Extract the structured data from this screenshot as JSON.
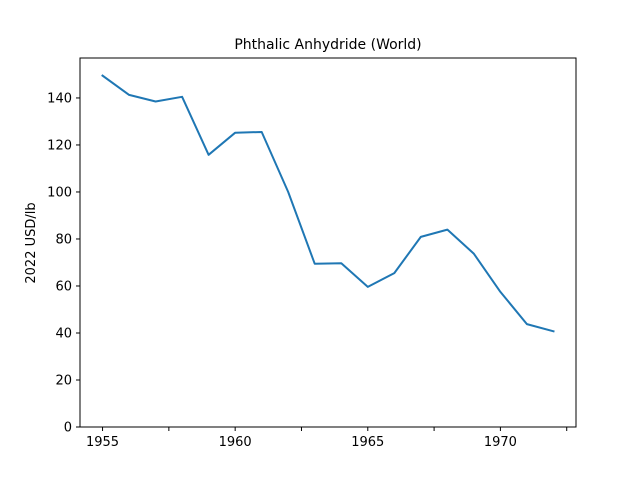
{
  "chart_data": {
    "type": "line",
    "title": "Phthalic Anhydride (World)",
    "xlabel": "",
    "ylabel": "2022 USD/lb",
    "x": [
      1955,
      1956,
      1957,
      1958,
      1959,
      1960,
      1961,
      1962,
      1963,
      1964,
      1965,
      1966,
      1967,
      1968,
      1969,
      1970,
      1971,
      1972
    ],
    "series": [
      {
        "values": [
          149.5,
          141.3,
          138.5,
          140.5,
          115.8,
          125.2,
          125.5,
          100.0,
          69.5,
          69.7,
          59.6,
          65.5,
          80.9,
          84.0,
          73.7,
          57.5,
          43.8,
          40.7
        ],
        "color": "#1f77b4"
      }
    ],
    "xticks": [
      1955,
      1960,
      1965,
      1970
    ],
    "xminor_ticks": [
      1957.5,
      1962.5,
      1967.5,
      1972.5
    ],
    "yticks": [
      0,
      20,
      40,
      60,
      80,
      100,
      120,
      140
    ],
    "xlim": [
      1954.15,
      1972.85
    ],
    "ylim": [
      0,
      157
    ],
    "grid": false,
    "legend": "none"
  }
}
